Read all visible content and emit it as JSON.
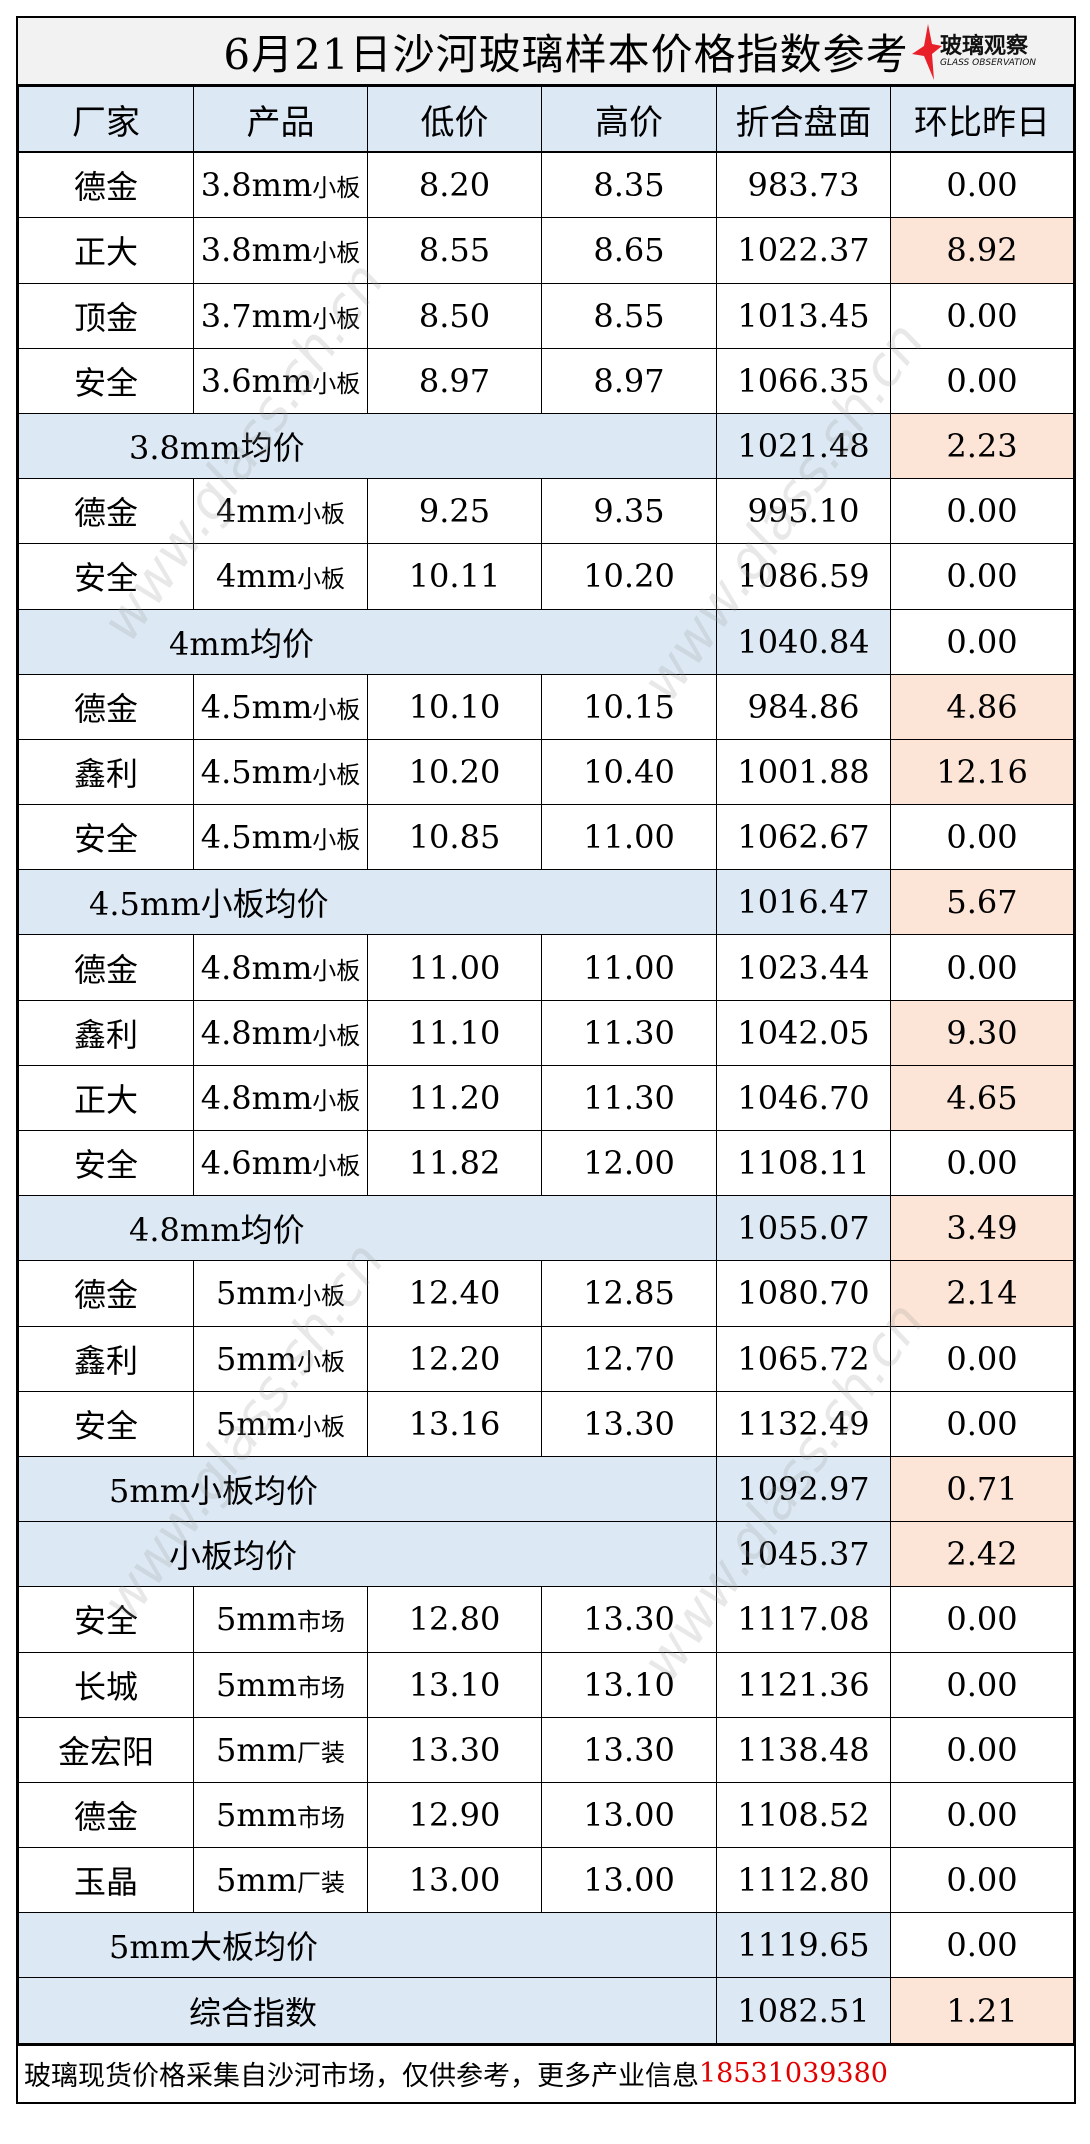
{
  "title": "6月21日沙河玻璃样本价格指数参考",
  "logo": {
    "cn": "玻璃观察",
    "en": "GLASS OBSERVATION",
    "accent": "#e8202a"
  },
  "watermark": "www.glass.sh.cn",
  "colors": {
    "header_bg": "#dce9f5",
    "up_bg": "#fce4d6",
    "title_bg": "#f2f2f2",
    "phone": "#e00000"
  },
  "columns": [
    "厂家",
    "产品",
    "低价",
    "高价",
    "折合盘面",
    "环比昨日"
  ],
  "rows": [
    {
      "type": "item",
      "maker": "德金",
      "spec": "3.8mm",
      "kind": "小板",
      "low": "8.20",
      "high": "8.35",
      "index": "983.73",
      "change": "0.00",
      "up": false
    },
    {
      "type": "item",
      "maker": "正大",
      "spec": "3.8mm",
      "kind": "小板",
      "low": "8.55",
      "high": "8.65",
      "index": "1022.37",
      "change": "8.92",
      "up": true
    },
    {
      "type": "item",
      "maker": "顶金",
      "spec": "3.7mm",
      "kind": "小板",
      "low": "8.50",
      "high": "8.55",
      "index": "1013.45",
      "change": "0.00",
      "up": false
    },
    {
      "type": "item",
      "maker": "安全",
      "spec": "3.6mm",
      "kind": "小板",
      "low": "8.97",
      "high": "8.97",
      "index": "1066.35",
      "change": "0.00",
      "up": false
    },
    {
      "type": "avg",
      "label": "3.8mm均价",
      "indent": 1,
      "index": "1021.48",
      "change": "2.23",
      "up": true
    },
    {
      "type": "item",
      "maker": "德金",
      "spec": "4mm",
      "kind": "小板",
      "low": "9.25",
      "high": "9.35",
      "index": "995.10",
      "change": "0.00",
      "up": false
    },
    {
      "type": "item",
      "maker": "安全",
      "spec": "4mm",
      "kind": "小板",
      "low": "10.11",
      "high": "10.20",
      "index": "1086.59",
      "change": "0.00",
      "up": false
    },
    {
      "type": "avg",
      "label": "4mm均价",
      "indent": 2,
      "index": "1040.84",
      "change": "0.00",
      "up": false
    },
    {
      "type": "item",
      "maker": "德金",
      "spec": "4.5mm",
      "kind": "小板",
      "low": "10.10",
      "high": "10.15",
      "index": "984.86",
      "change": "4.86",
      "up": true
    },
    {
      "type": "item",
      "maker": "鑫利",
      "spec": "4.5mm",
      "kind": "小板",
      "low": "10.20",
      "high": "10.40",
      "index": "1001.88",
      "change": "12.16",
      "up": true
    },
    {
      "type": "item",
      "maker": "安全",
      "spec": "4.5mm",
      "kind": "小板",
      "low": "10.85",
      "high": "11.00",
      "index": "1062.67",
      "change": "0.00",
      "up": false
    },
    {
      "type": "avg",
      "label": "4.5mm小板均价",
      "indent": 0,
      "index": "1016.47",
      "change": "5.67",
      "up": true
    },
    {
      "type": "item",
      "maker": "德金",
      "spec": "4.8mm",
      "kind": "小板",
      "low": "11.00",
      "high": "11.00",
      "index": "1023.44",
      "change": "0.00",
      "up": false
    },
    {
      "type": "item",
      "maker": "鑫利",
      "spec": "4.8mm",
      "kind": "小板",
      "low": "11.10",
      "high": "11.30",
      "index": "1042.05",
      "change": "9.30",
      "up": true
    },
    {
      "type": "item",
      "maker": "正大",
      "spec": "4.8mm",
      "kind": "小板",
      "low": "11.20",
      "high": "11.30",
      "index": "1046.70",
      "change": "4.65",
      "up": true
    },
    {
      "type": "item",
      "maker": "安全",
      "spec": "4.6mm",
      "kind": "小板",
      "low": "11.82",
      "high": "12.00",
      "index": "1108.11",
      "change": "0.00",
      "up": false
    },
    {
      "type": "avg",
      "label": "4.8mm均价",
      "indent": 1,
      "index": "1055.07",
      "change": "3.49",
      "up": true
    },
    {
      "type": "item",
      "maker": "德金",
      "spec": "5mm",
      "kind": "小板",
      "low": "12.40",
      "high": "12.85",
      "index": "1080.70",
      "change": "2.14",
      "up": true
    },
    {
      "type": "item",
      "maker": "鑫利",
      "spec": "5mm",
      "kind": "小板",
      "low": "12.20",
      "high": "12.70",
      "index": "1065.72",
      "change": "0.00",
      "up": false
    },
    {
      "type": "item",
      "maker": "安全",
      "spec": "5mm",
      "kind": "小板",
      "low": "13.16",
      "high": "13.30",
      "index": "1132.49",
      "change": "0.00",
      "up": false
    },
    {
      "type": "avg",
      "label": "5mm小板均价",
      "indent": 0.5,
      "index": "1092.97",
      "change": "0.71",
      "up": true
    },
    {
      "type": "avg",
      "label": "小板均价",
      "indent": 2,
      "index": "1045.37",
      "change": "2.42",
      "up": true
    },
    {
      "type": "item",
      "maker": "安全",
      "spec": "5mm",
      "kind": "市场",
      "low": "12.80",
      "high": "13.30",
      "index": "1117.08",
      "change": "0.00",
      "up": false
    },
    {
      "type": "item",
      "maker": "长城",
      "spec": "5mm",
      "kind": "市场",
      "low": "13.10",
      "high": "13.10",
      "index": "1121.36",
      "change": "0.00",
      "up": false
    },
    {
      "type": "item",
      "maker": "金宏阳",
      "spec": "5mm",
      "kind": "厂装",
      "low": "13.30",
      "high": "13.30",
      "index": "1138.48",
      "change": "0.00",
      "up": false
    },
    {
      "type": "item",
      "maker": "德金",
      "spec": "5mm",
      "kind": "市场",
      "low": "12.90",
      "high": "13.00",
      "index": "1108.52",
      "change": "0.00",
      "up": false
    },
    {
      "type": "item",
      "maker": "玉晶",
      "spec": "5mm",
      "kind": "厂装",
      "low": "13.00",
      "high": "13.00",
      "index": "1112.80",
      "change": "0.00",
      "up": false
    },
    {
      "type": "avg",
      "label": "5mm大板均价",
      "indent": 0.5,
      "index": "1119.65",
      "change": "0.00",
      "up": false
    },
    {
      "type": "avg",
      "label": "综合指数",
      "indent": 2.5,
      "index": "1082.51",
      "change": "1.21",
      "up": true
    }
  ],
  "footer": {
    "text": "玻璃现货价格采集自沙河市场，仅供参考，更多产业信息",
    "phone": "18531039380"
  }
}
